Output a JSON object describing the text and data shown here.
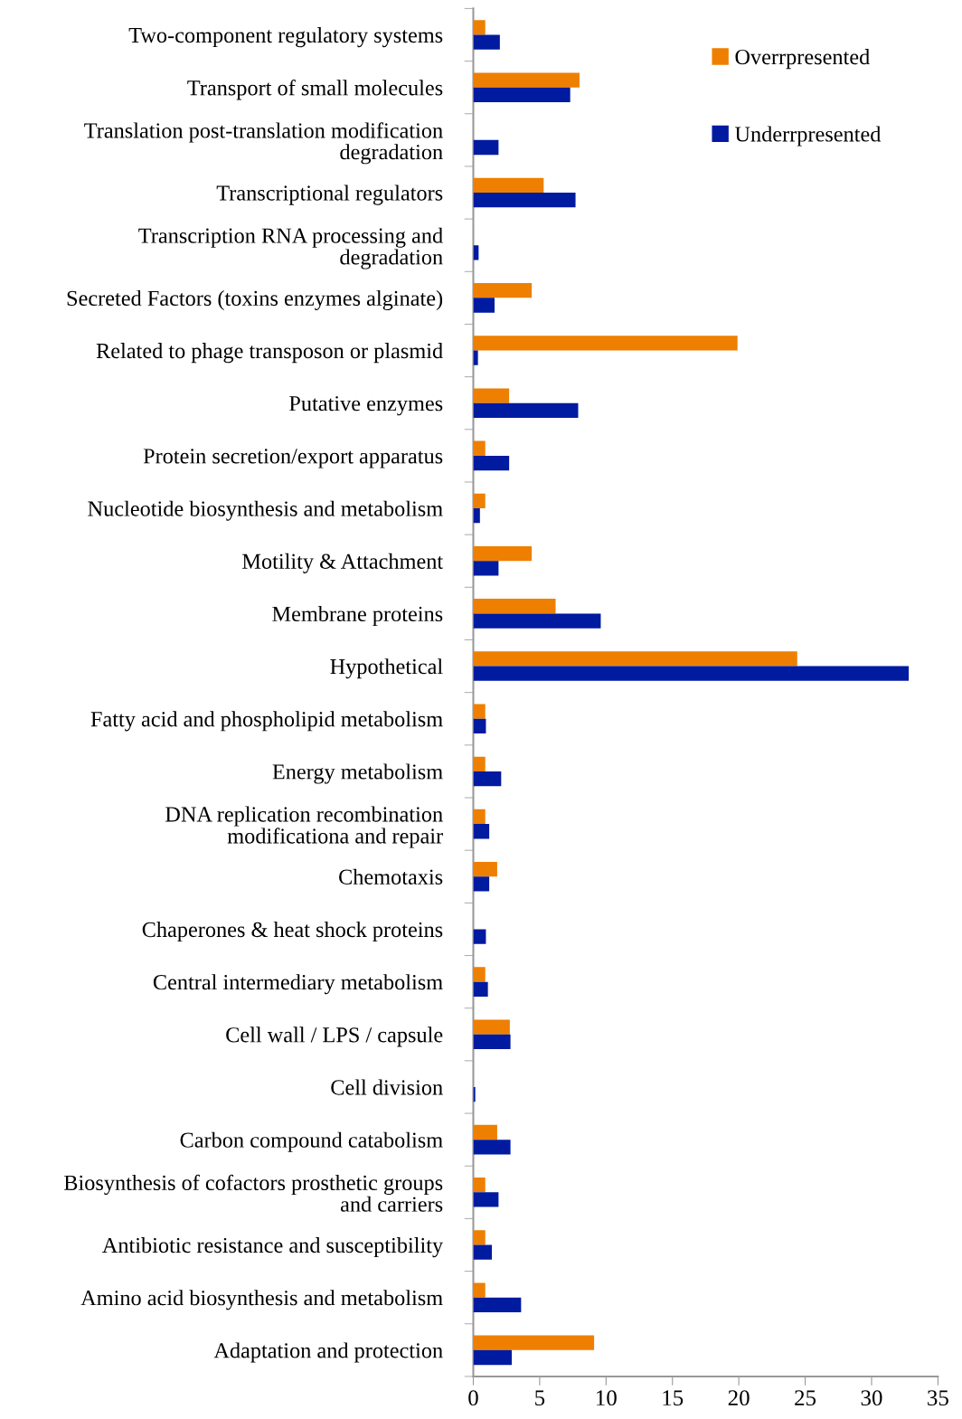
{
  "chart_data": {
    "type": "bar",
    "orientation": "horizontal",
    "categories": [
      "Two-component regulatory systems",
      "Transport of small molecules",
      "Translation post-translation modification\ndegradation",
      "Transcriptional regulators",
      "Transcription RNA processing and\ndegradation",
      "Secreted Factors (toxins enzymes alginate)",
      "Related to phage transposon or plasmid",
      "Putative enzymes",
      "Protein secretion/export apparatus",
      "Nucleotide biosynthesis and metabolism",
      "Motility & Attachment",
      "Membrane proteins",
      "Hypothetical",
      "Fatty acid and phospholipid metabolism",
      "Energy metabolism",
      "DNA replication recombination\nmodificationa and repair",
      "Chemotaxis",
      "Chaperones & heat shock proteins",
      "Central intermediary metabolism",
      "Cell wall / LPS / capsule",
      "Cell division",
      "Carbon compound catabolism",
      "Biosynthesis of cofactors prosthetic groups\nand carriers",
      "Antibiotic resistance and susceptibility",
      "Amino acid biosynthesis and metabolism",
      "Adaptation and protection"
    ],
    "series": [
      {
        "name": "Overrpresented",
        "color": "#ee7f00",
        "values": [
          0.9,
          8.0,
          0,
          5.3,
          0,
          4.4,
          19.9,
          2.7,
          0.9,
          0.9,
          4.4,
          6.2,
          24.4,
          0.9,
          0.9,
          0.9,
          1.8,
          0,
          0.9,
          2.75,
          0,
          1.8,
          0.9,
          0.9,
          0.9,
          9.1
        ]
      },
      {
        "name": "Underrpresented",
        "color": "#001aa0",
        "values": [
          2.0,
          7.3,
          1.9,
          7.7,
          0.4,
          1.6,
          0.35,
          7.9,
          2.7,
          0.5,
          1.9,
          9.6,
          32.8,
          0.95,
          2.1,
          1.2,
          1.2,
          0.95,
          1.1,
          2.8,
          0.15,
          2.8,
          1.9,
          1.4,
          3.6,
          2.9
        ]
      }
    ],
    "xlim": [
      0,
      35
    ],
    "xticks": [
      0,
      5,
      10,
      15,
      20,
      25,
      30,
      35
    ],
    "grid": false,
    "legend": "top right"
  }
}
